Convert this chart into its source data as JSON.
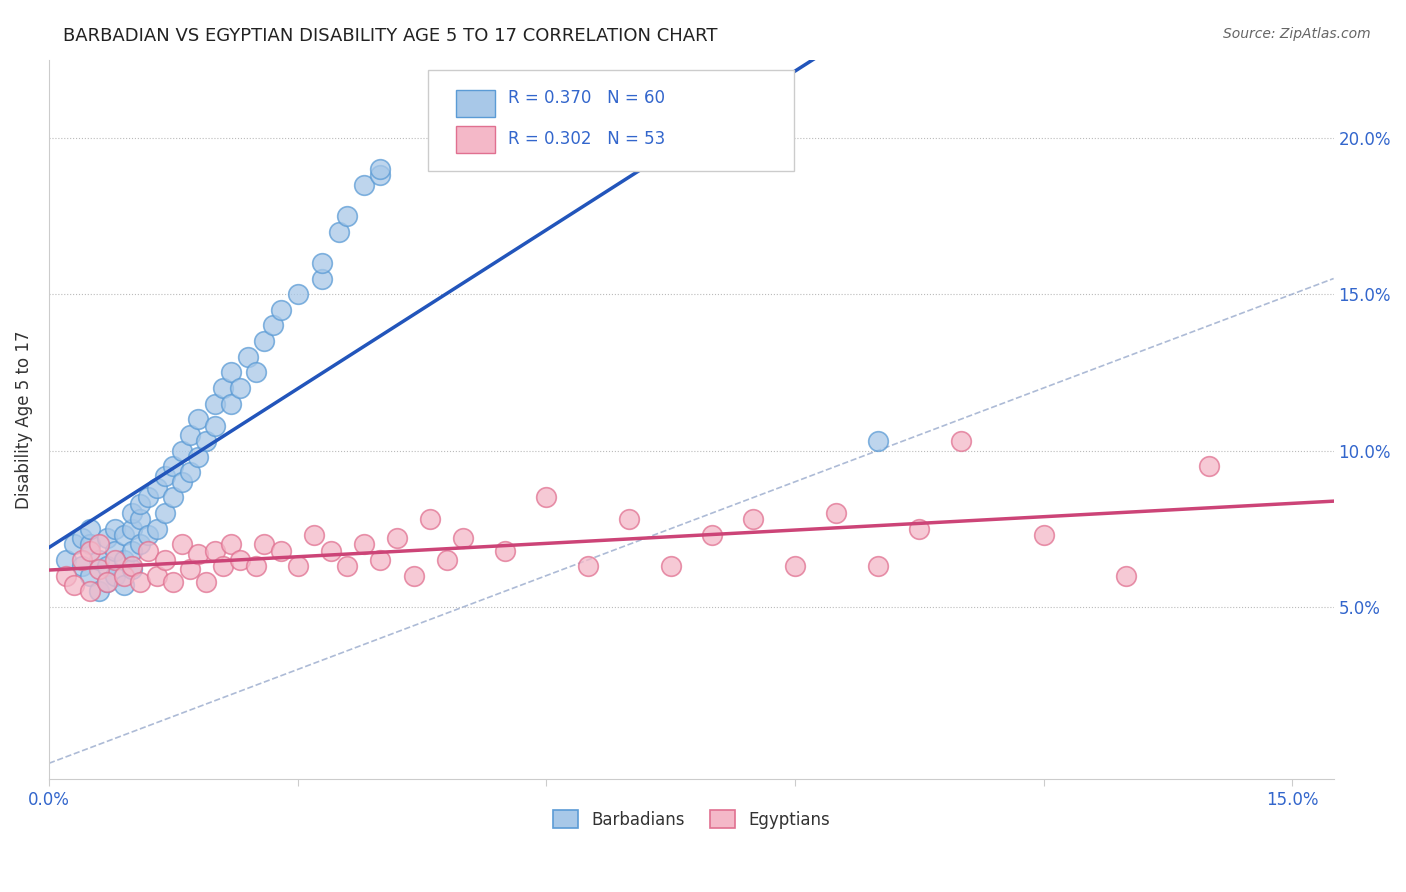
{
  "title": "BARBADIAN VS EGYPTIAN DISABILITY AGE 5 TO 17 CORRELATION CHART",
  "source": "Source: ZipAtlas.com",
  "xlim": [
    0.0,
    0.155
  ],
  "ylim": [
    -0.005,
    0.225
  ],
  "ylabel_ticks": [
    0.05,
    0.1,
    0.15,
    0.2
  ],
  "ylabel_tick_labels": [
    "5.0%",
    "10.0%",
    "15.0%",
    "20.0%"
  ],
  "r_barbadian": 0.37,
  "n_barbadian": 60,
  "r_egyptian": 0.302,
  "n_egyptian": 53,
  "barbadian_color": "#a8c8e8",
  "barbadian_edge": "#5b9bd5",
  "egyptian_color": "#f4b8c8",
  "egyptian_edge": "#e07090",
  "blue_line_color": "#2255bb",
  "pink_line_color": "#cc4477",
  "diag_line_color": "#99aacc",
  "ylabel": "Disability Age 5 to 17",
  "legend_label_1": "Barbadians",
  "legend_label_2": "Egyptians",
  "barbadian_x": [
    0.002,
    0.003,
    0.004,
    0.004,
    0.005,
    0.005,
    0.005,
    0.006,
    0.006,
    0.007,
    0.007,
    0.007,
    0.008,
    0.008,
    0.008,
    0.009,
    0.009,
    0.009,
    0.01,
    0.01,
    0.01,
    0.01,
    0.011,
    0.011,
    0.011,
    0.012,
    0.012,
    0.013,
    0.013,
    0.014,
    0.014,
    0.015,
    0.015,
    0.016,
    0.016,
    0.017,
    0.017,
    0.018,
    0.018,
    0.019,
    0.02,
    0.02,
    0.021,
    0.022,
    0.022,
    0.023,
    0.024,
    0.025,
    0.026,
    0.027,
    0.028,
    0.03,
    0.033,
    0.033,
    0.035,
    0.036,
    0.038,
    0.04,
    0.04,
    0.1
  ],
  "barbadian_y": [
    0.065,
    0.07,
    0.063,
    0.072,
    0.06,
    0.07,
    0.075,
    0.055,
    0.065,
    0.058,
    0.063,
    0.072,
    0.06,
    0.068,
    0.075,
    0.057,
    0.065,
    0.073,
    0.062,
    0.068,
    0.075,
    0.08,
    0.07,
    0.078,
    0.083,
    0.073,
    0.085,
    0.075,
    0.088,
    0.08,
    0.092,
    0.085,
    0.095,
    0.09,
    0.1,
    0.093,
    0.105,
    0.098,
    0.11,
    0.103,
    0.108,
    0.115,
    0.12,
    0.115,
    0.125,
    0.12,
    0.13,
    0.125,
    0.135,
    0.14,
    0.145,
    0.15,
    0.155,
    0.16,
    0.17,
    0.175,
    0.185,
    0.188,
    0.19,
    0.103
  ],
  "egyptian_x": [
    0.002,
    0.003,
    0.004,
    0.005,
    0.005,
    0.006,
    0.006,
    0.007,
    0.008,
    0.009,
    0.01,
    0.011,
    0.012,
    0.013,
    0.014,
    0.015,
    0.016,
    0.017,
    0.018,
    0.019,
    0.02,
    0.021,
    0.022,
    0.023,
    0.025,
    0.026,
    0.028,
    0.03,
    0.032,
    0.034,
    0.036,
    0.038,
    0.04,
    0.042,
    0.044,
    0.046,
    0.048,
    0.05,
    0.055,
    0.06,
    0.065,
    0.07,
    0.075,
    0.08,
    0.085,
    0.09,
    0.095,
    0.1,
    0.105,
    0.11,
    0.12,
    0.13,
    0.14
  ],
  "egyptian_y": [
    0.06,
    0.057,
    0.065,
    0.055,
    0.068,
    0.062,
    0.07,
    0.058,
    0.065,
    0.06,
    0.063,
    0.058,
    0.068,
    0.06,
    0.065,
    0.058,
    0.07,
    0.062,
    0.067,
    0.058,
    0.068,
    0.063,
    0.07,
    0.065,
    0.063,
    0.07,
    0.068,
    0.063,
    0.073,
    0.068,
    0.063,
    0.07,
    0.065,
    0.072,
    0.06,
    0.078,
    0.065,
    0.072,
    0.068,
    0.085,
    0.063,
    0.078,
    0.063,
    0.073,
    0.078,
    0.063,
    0.08,
    0.063,
    0.075,
    0.103,
    0.073,
    0.06,
    0.095
  ]
}
